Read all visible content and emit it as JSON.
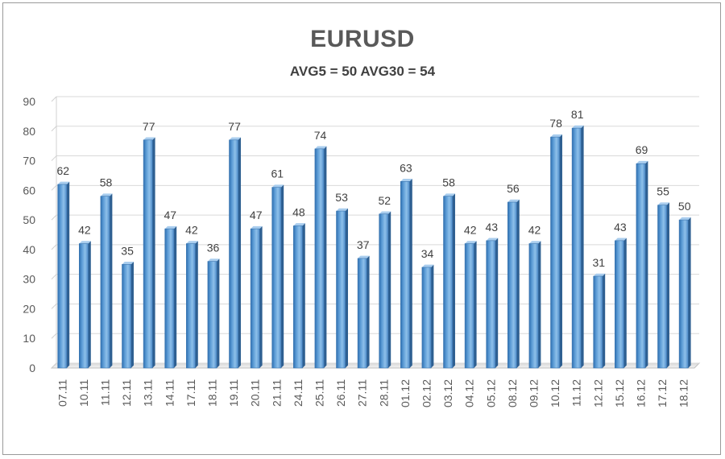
{
  "chart_data": {
    "type": "bar",
    "title": "EURUSD",
    "subtitle": "AVG5 = 50 AVG30 = 54",
    "xlabel": "",
    "ylabel": "",
    "ylim": [
      0,
      90
    ],
    "yticks": [
      0,
      10,
      20,
      30,
      40,
      50,
      60,
      70,
      80,
      90
    ],
    "grid": true,
    "legend": "none",
    "bar_color": "#5b9bd5",
    "categories": [
      "07.11",
      "10.11",
      "11.11",
      "12.11",
      "13.11",
      "14.11",
      "17.11",
      "18.11",
      "19.11",
      "20.11",
      "21.11",
      "24.11",
      "25.11",
      "26.11",
      "27.11",
      "28.11",
      "01.12",
      "02.12",
      "03.12",
      "04.12",
      "05.12",
      "08.12",
      "09.12",
      "10.12",
      "11.12",
      "12.12",
      "15.12",
      "16.12",
      "17.12",
      "18.12"
    ],
    "values": [
      62,
      42,
      58,
      35,
      77,
      47,
      42,
      36,
      77,
      47,
      61,
      48,
      74,
      53,
      37,
      52,
      63,
      34,
      58,
      42,
      43,
      56,
      42,
      78,
      81,
      31,
      43,
      69,
      55,
      50
    ]
  }
}
